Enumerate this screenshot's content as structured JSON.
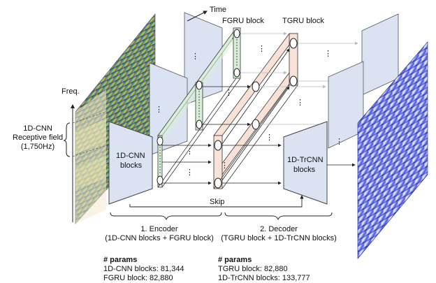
{
  "labels": {
    "time": "Time",
    "freq": "Freq.",
    "fgru_block": "FGRU block",
    "tgru_block": "TGRU block",
    "cnn_rf_line1": "1D-CNN",
    "cnn_rf_line2": "Receptive field",
    "cnn_rf_line3": "(1,750Hz)",
    "cnn_blocks_line1": "1D-CNN",
    "cnn_blocks_line2": "blocks",
    "trcnn_blocks_line1": "1D-TrCNN",
    "trcnn_blocks_line2": "blocks",
    "skip": "Skip",
    "dots": "⋮"
  },
  "encoder": {
    "title": "1.   Encoder",
    "subtitle": "(1D-CNN blocks + FGRU block)",
    "params_heading": "# params",
    "params": [
      "1D-CNN blocks: 81,344",
      "FGRU block: 82,880"
    ]
  },
  "decoder": {
    "title": "2. Decoder",
    "subtitle": "(TGRU block + 1D-TrCNN blocks)",
    "params_heading": "# params",
    "params": [
      "TGRU block: 82,880",
      "1D-TrCNN blocks: 133,777"
    ]
  },
  "colors": {
    "block_fill": "#dbe3f3",
    "fgru_fill": "#d9efd9",
    "tgru_fill": "#f8e1d6",
    "spectrogram_in": "#5e7e7a",
    "spectrogram_out": "#2430c8"
  }
}
